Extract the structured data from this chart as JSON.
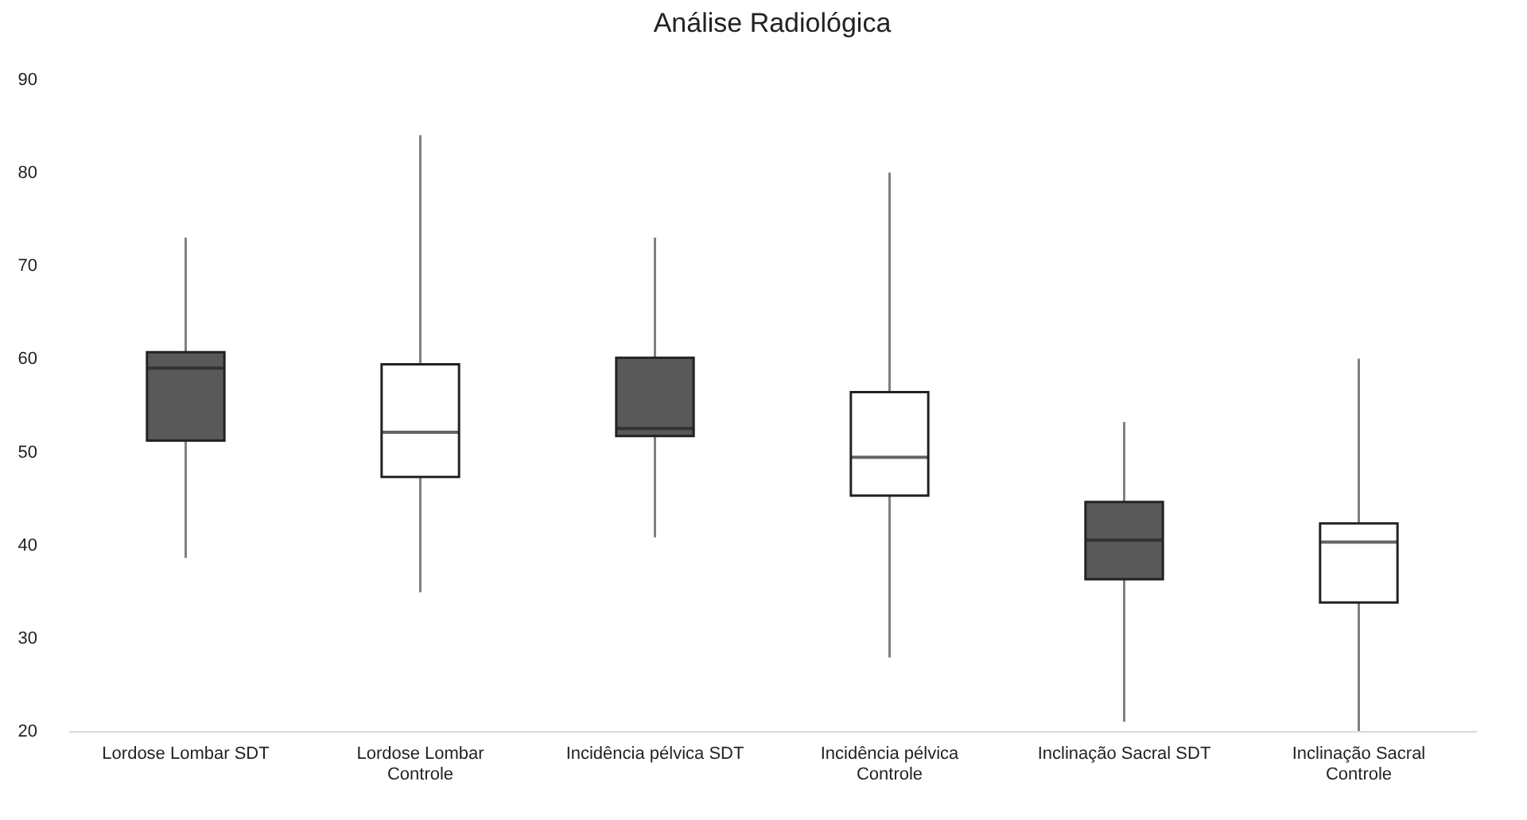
{
  "chart_data": {
    "type": "box",
    "title": "Análise Radiológica",
    "categories": [
      "Lordose Lombar SDT",
      "Lordose Lombar Controle",
      "Incidência pélvica SDT",
      "Incidência pélvica Controle",
      "Inclinação Sacral SDT",
      "Inclinação Sacral Controle"
    ],
    "boxes": [
      {
        "low": 38.6,
        "q1": 51.2,
        "median": 59.0,
        "q3": 60.7,
        "high": 73
      },
      {
        "low": 34.9,
        "q1": 47.3,
        "median": 52.1,
        "q3": 59.4,
        "high": 84
      },
      {
        "low": 40.8,
        "q1": 51.7,
        "median": 52.5,
        "q3": 60.1,
        "high": 73
      },
      {
        "low": 27.9,
        "q1": 45.3,
        "median": 49.4,
        "q3": 56.4,
        "high": 80
      },
      {
        "low": 21.0,
        "q1": 36.3,
        "median": 40.5,
        "q3": 44.6,
        "high": 53.2
      },
      {
        "low": 20,
        "q1": 33.8,
        "median": 40.3,
        "q3": 42.3,
        "high": 60
      }
    ],
    "colors": [
      "#595959",
      "#ffffff",
      "#595959",
      "#ffffff",
      "#595959",
      "#ffffff"
    ],
    "ylim": [
      20,
      90
    ],
    "yticks": [
      20,
      30,
      40,
      50,
      60,
      70,
      80,
      90
    ],
    "grid": false
  }
}
